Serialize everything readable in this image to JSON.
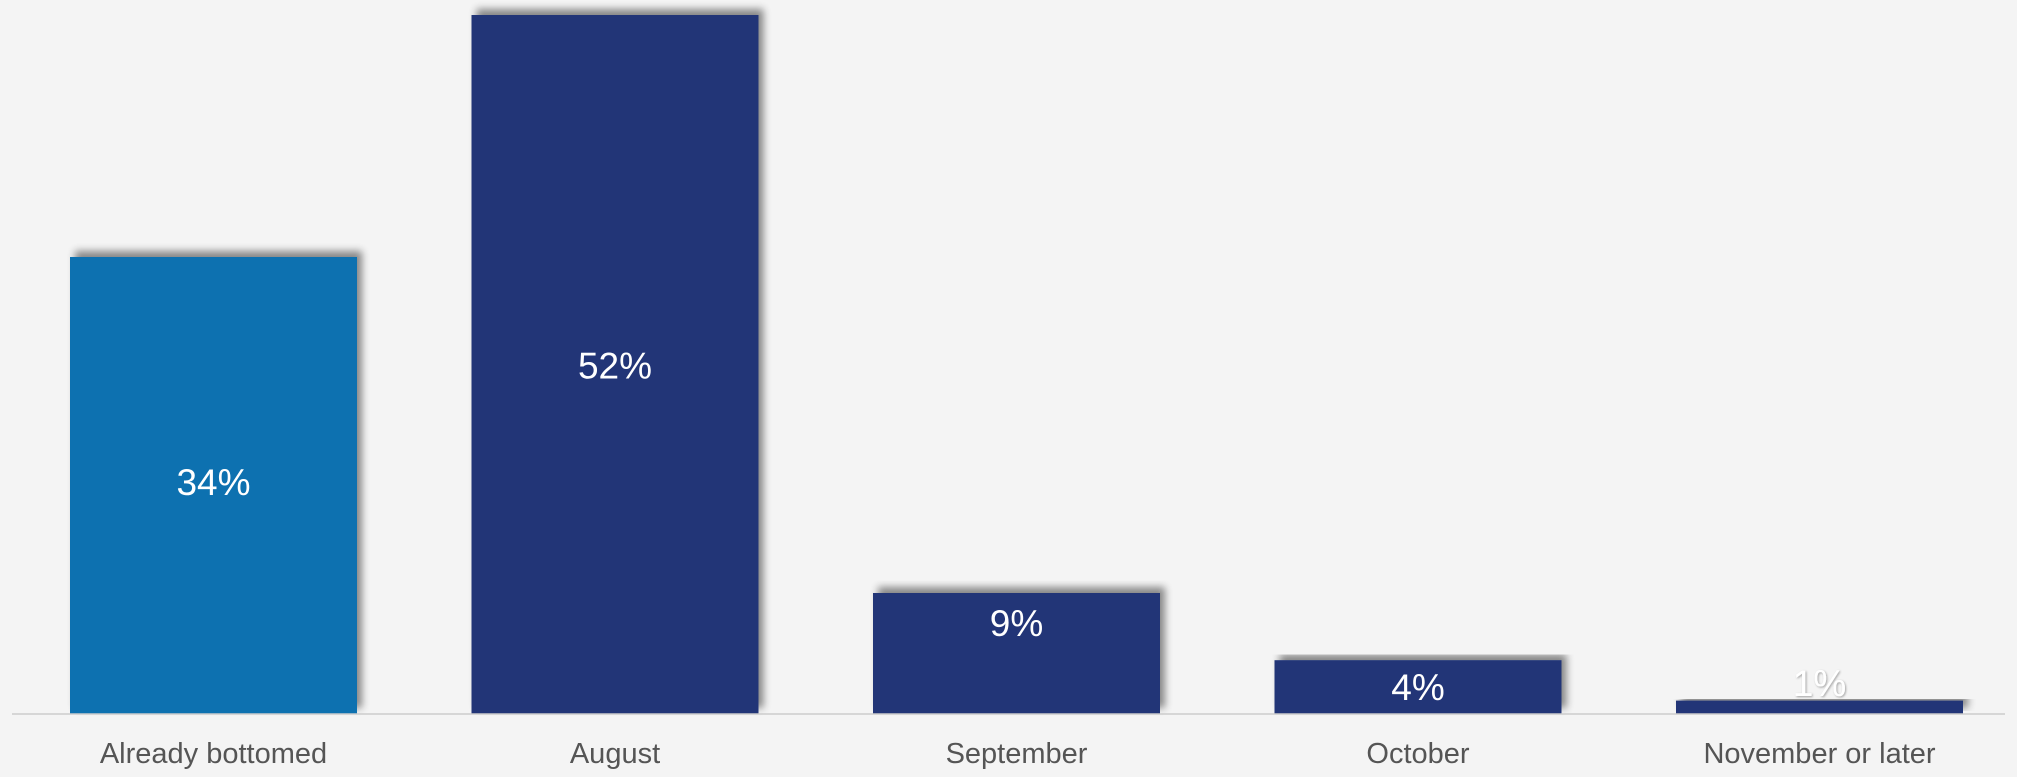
{
  "chart_data": {
    "type": "bar",
    "categories": [
      "Already bottomed",
      "August",
      "September",
      "October",
      "November or later"
    ],
    "values": [
      34,
      52,
      9,
      4,
      1
    ],
    "value_labels": [
      "34%",
      "52%",
      "9%",
      "4%",
      "1%"
    ],
    "unit": "%",
    "ylim": [
      0,
      52
    ],
    "grid": false,
    "legend": "none",
    "colors": {
      "highlight": "#1071b0",
      "bar": "#213477",
      "value_label": "#ffffff",
      "category_label": "#555555",
      "baseline": "#cccccc",
      "background": "#f4f4f4"
    },
    "highlight_index": 0
  }
}
